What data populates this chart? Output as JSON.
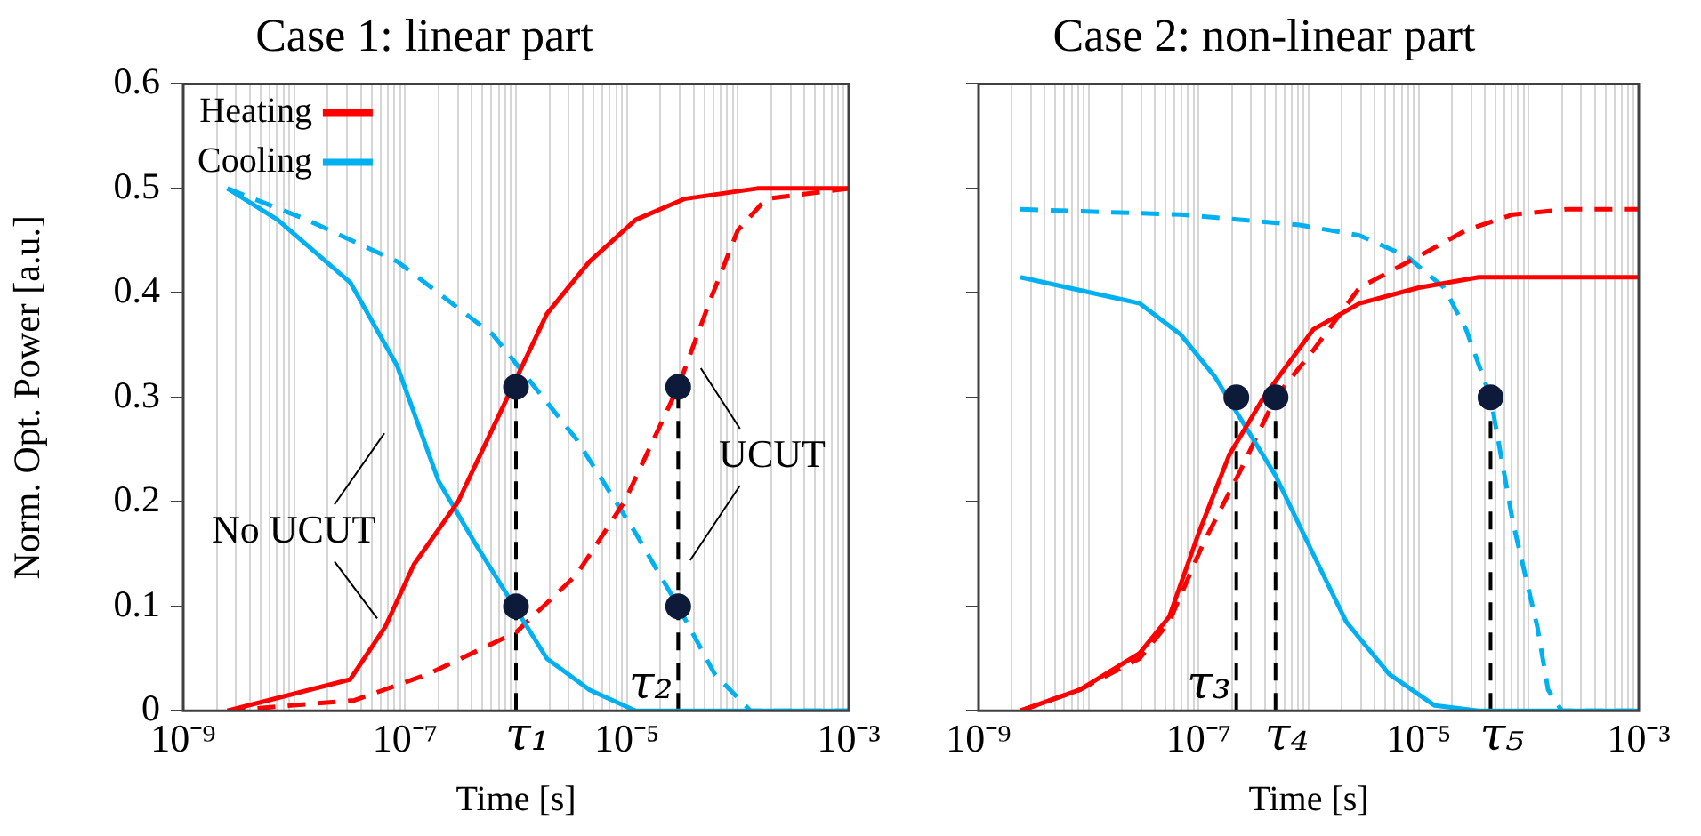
{
  "chart_data": [
    {
      "type": "line",
      "title": "Case 1: linear part",
      "xlabel": "Time [s]",
      "ylabel": "Norm. Opt. Power [a.u.]",
      "log": "x",
      "xlim": [
        1e-09,
        0.001
      ],
      "ylim": [
        0,
        0.6
      ],
      "yticks": [
        0,
        0.1,
        0.2,
        0.3,
        0.4,
        0.5,
        0.6
      ],
      "grid": "x",
      "legend": "top left",
      "xticks": [
        {
          "value": 1e-09,
          "label": "10⁻⁹"
        },
        {
          "value": 2e-09,
          "label": null
        },
        {
          "value": 3e-09,
          "label": null
        },
        {
          "value": 4e-09,
          "label": null
        },
        {
          "value": 5e-09,
          "label": null
        },
        {
          "value": 6e-09,
          "label": null
        },
        {
          "value": 7e-09,
          "label": null
        },
        {
          "value": 8e-09,
          "label": null
        },
        {
          "value": 9e-09,
          "label": null
        },
        {
          "value": 1e-08,
          "label": null
        },
        {
          "value": 2e-08,
          "label": null
        },
        {
          "value": 3e-08,
          "label": null
        },
        {
          "value": 4e-08,
          "label": null
        },
        {
          "value": 5e-08,
          "label": null
        },
        {
          "value": 6e-08,
          "label": null
        },
        {
          "value": 7e-08,
          "label": null
        },
        {
          "value": 8e-08,
          "label": null
        },
        {
          "value": 9e-08,
          "label": null
        },
        {
          "value": 1e-07,
          "label": "10⁻⁷"
        },
        {
          "value": 2e-07,
          "label": null
        },
        {
          "value": 3e-07,
          "label": null
        },
        {
          "value": 4e-07,
          "label": null
        },
        {
          "value": 5e-07,
          "label": null
        },
        {
          "value": 6e-07,
          "label": null
        },
        {
          "value": 7e-07,
          "label": null
        },
        {
          "value": 8e-07,
          "label": null
        },
        {
          "value": 9e-07,
          "label": null
        },
        {
          "value": 1e-06,
          "label": null
        },
        {
          "value": 2e-06,
          "label": null
        },
        {
          "value": 3e-06,
          "label": null
        },
        {
          "value": 4e-06,
          "label": null
        },
        {
          "value": 5e-06,
          "label": null
        },
        {
          "value": 6e-06,
          "label": null
        },
        {
          "value": 7e-06,
          "label": null
        },
        {
          "value": 8e-06,
          "label": null
        },
        {
          "value": 9e-06,
          "label": null
        },
        {
          "value": 1e-05,
          "label": "10⁻⁵"
        },
        {
          "value": 2e-05,
          "label": null
        },
        {
          "value": 3e-05,
          "label": null
        },
        {
          "value": 4e-05,
          "label": null
        },
        {
          "value": 5e-05,
          "label": null
        },
        {
          "value": 6e-05,
          "label": null
        },
        {
          "value": 7e-05,
          "label": null
        },
        {
          "value": 8e-05,
          "label": null
        },
        {
          "value": 9e-05,
          "label": null
        },
        {
          "value": 0.0001,
          "label": null
        },
        {
          "value": 0.0002,
          "label": null
        },
        {
          "value": 0.0003,
          "label": null
        },
        {
          "value": 0.0004,
          "label": null
        },
        {
          "value": 0.0005,
          "label": null
        },
        {
          "value": 0.0006,
          "label": null
        },
        {
          "value": 0.0007,
          "label": null
        },
        {
          "value": 0.0008,
          "label": null
        },
        {
          "value": 0.0009,
          "label": null
        },
        {
          "value": 0.001,
          "label": "10⁻³"
        }
      ],
      "series": [
        {
          "name": "Heating",
          "color": "#ff0000",
          "line_style": "solid",
          "marker": "none",
          "x": [
            2.5e-09,
            3.2e-08,
            6.6e-08,
            1.2e-07,
            3e-07,
            1.9e-06,
            4.6e-06,
            1.2e-05,
            3.3e-05,
            0.00015,
            0.001
          ],
          "values": [
            0,
            0.03,
            0.08,
            0.14,
            0.2,
            0.38,
            0.43,
            0.47,
            0.49,
            0.5,
            0.5
          ]
        },
        {
          "name": "Cooling",
          "color": "#00b0f0",
          "line_style": "solid",
          "marker": "none",
          "x": [
            2.5e-09,
            7.1e-09,
            3.2e-08,
            8.5e-08,
            2e-07,
            4.3e-07,
            1.9e-06,
            4.6e-06,
            1.2e-05,
            0.001
          ],
          "values": [
            0.5,
            0.47,
            0.41,
            0.33,
            0.22,
            0.16,
            0.05,
            0.02,
            0,
            0
          ]
        },
        {
          "color": "#ff0000",
          "line_style": "dashed",
          "marker": "none",
          "x": [
            2.5e-09,
            3.5e-08,
            1.6e-07,
            1e-06,
            3.5e-06,
            9.5e-06,
            2.9e-05,
            5.5e-05,
            0.0001,
            0.00018,
            0.001
          ],
          "values": [
            0,
            0.01,
            0.035,
            0.075,
            0.13,
            0.2,
            0.31,
            0.39,
            0.46,
            0.49,
            0.5
          ]
        },
        {
          "color": "#00b0f0",
          "line_style": "dashed",
          "marker": "none",
          "x": [
            2.5e-09,
            1.3e-08,
            8.5e-08,
            6.2e-07,
            3.5e-06,
            1.2e-05,
            2.9e-05,
            6.2e-05,
            0.00013,
            0.001
          ],
          "values": [
            0.5,
            0.47,
            0.43,
            0.36,
            0.26,
            0.17,
            0.1,
            0.035,
            0,
            0
          ]
        },
        {
          "type": "scatter",
          "color": "#0d1a3a",
          "marker": "circle",
          "x": [
            1e-06,
            1e-06,
            2.9e-05,
            2.9e-05
          ],
          "values": [
            0.31,
            0.1,
            0.31,
            0.1
          ]
        }
      ],
      "ref_lines": [
        {
          "axis": "x",
          "value": 1e-06,
          "label": "τ₁",
          "color": "#000000",
          "line_style": "dashed"
        },
        {
          "axis": "x",
          "value": 2.9e-05,
          "label": "τ₂",
          "color": "#000000",
          "line_style": "dashed"
        }
      ],
      "annotations": [
        "No UCUT",
        "UCUT"
      ]
    },
    {
      "type": "line",
      "title": "Case 2: non-linear part",
      "xlabel": "Time [s]",
      "log": "x",
      "xlim": [
        1e-09,
        0.001
      ],
      "ylim": [
        0,
        0.6
      ],
      "yticks": [
        0,
        0.1,
        0.2,
        0.3,
        0.4,
        0.5,
        0.6
      ],
      "grid": "x",
      "tick_labels": "x",
      "xticks": [
        {
          "value": 1e-09,
          "label": "10⁻⁹"
        },
        {
          "value": 2e-09,
          "label": null
        },
        {
          "value": 3e-09,
          "label": null
        },
        {
          "value": 4e-09,
          "label": null
        },
        {
          "value": 5e-09,
          "label": null
        },
        {
          "value": 6e-09,
          "label": null
        },
        {
          "value": 7e-09,
          "label": null
        },
        {
          "value": 8e-09,
          "label": null
        },
        {
          "value": 9e-09,
          "label": null
        },
        {
          "value": 1e-08,
          "label": null
        },
        {
          "value": 2e-08,
          "label": null
        },
        {
          "value": 3e-08,
          "label": null
        },
        {
          "value": 4e-08,
          "label": null
        },
        {
          "value": 5e-08,
          "label": null
        },
        {
          "value": 6e-08,
          "label": null
        },
        {
          "value": 7e-08,
          "label": null
        },
        {
          "value": 8e-08,
          "label": null
        },
        {
          "value": 9e-08,
          "label": null
        },
        {
          "value": 1e-07,
          "label": "10⁻⁷"
        },
        {
          "value": 2e-07,
          "label": null
        },
        {
          "value": 3e-07,
          "label": null
        },
        {
          "value": 4e-07,
          "label": null
        },
        {
          "value": 5e-07,
          "label": null
        },
        {
          "value": 6e-07,
          "label": null
        },
        {
          "value": 7e-07,
          "label": null
        },
        {
          "value": 8e-07,
          "label": null
        },
        {
          "value": 9e-07,
          "label": null
        },
        {
          "value": 1e-06,
          "label": null
        },
        {
          "value": 2e-06,
          "label": null
        },
        {
          "value": 3e-06,
          "label": null
        },
        {
          "value": 4e-06,
          "label": null
        },
        {
          "value": 5e-06,
          "label": null
        },
        {
          "value": 6e-06,
          "label": null
        },
        {
          "value": 7e-06,
          "label": null
        },
        {
          "value": 8e-06,
          "label": null
        },
        {
          "value": 9e-06,
          "label": null
        },
        {
          "value": 1e-05,
          "label": "10⁻⁵"
        },
        {
          "value": 2e-05,
          "label": null
        },
        {
          "value": 3e-05,
          "label": null
        },
        {
          "value": 4e-05,
          "label": null
        },
        {
          "value": 5e-05,
          "label": null
        },
        {
          "value": 6e-05,
          "label": null
        },
        {
          "value": 7e-05,
          "label": null
        },
        {
          "value": 8e-05,
          "label": null
        },
        {
          "value": 9e-05,
          "label": null
        },
        {
          "value": 0.0001,
          "label": null
        },
        {
          "value": 0.0002,
          "label": null
        },
        {
          "value": 0.0003,
          "label": null
        },
        {
          "value": 0.0004,
          "label": null
        },
        {
          "value": 0.0005,
          "label": null
        },
        {
          "value": 0.0006,
          "label": null
        },
        {
          "value": 0.0007,
          "label": null
        },
        {
          "value": 0.0008,
          "label": null
        },
        {
          "value": 0.0009,
          "label": null
        },
        {
          "value": 0.001,
          "label": "10⁻³"
        }
      ],
      "series": [
        {
          "color": "#ff0000",
          "line_style": "solid",
          "marker": "none",
          "x": [
            2.4e-09,
            8.3e-09,
            2.9e-08,
            5.4e-08,
            1e-07,
            1.9e-07,
            3.9e-07,
            1.1e-06,
            2.9e-06,
            1e-05,
            3.5e-05,
            0.001
          ],
          "values": [
            0,
            0.02,
            0.055,
            0.09,
            0.17,
            0.245,
            0.3,
            0.365,
            0.39,
            0.405,
            0.415,
            0.415
          ]
        },
        {
          "color": "#00b0f0",
          "line_style": "solid",
          "marker": "none",
          "x": [
            2.4e-09,
            2.9e-08,
            6.9e-08,
            1.4e-07,
            5e-07,
            1.1e-06,
            2.2e-06,
            5.4e-06,
            1.4e-05,
            3.5e-05,
            0.001
          ],
          "values": [
            0.415,
            0.39,
            0.36,
            0.32,
            0.225,
            0.15,
            0.085,
            0.035,
            0.005,
            0,
            0
          ]
        },
        {
          "color": "#ff0000",
          "line_style": "dashed",
          "marker": "none",
          "x": [
            2.4e-09,
            8.3e-09,
            2.9e-08,
            5.4e-08,
            1.1e-07,
            2.4e-07,
            5e-07,
            1.1e-06,
            2.9e-06,
            1e-05,
            2.7e-05,
            7.2e-05,
            0.00022,
            0.001
          ],
          "values": [
            0,
            0.02,
            0.05,
            0.085,
            0.16,
            0.23,
            0.3,
            0.345,
            0.405,
            0.435,
            0.46,
            0.475,
            0.48,
            0.48
          ]
        },
        {
          "color": "#00b0f0",
          "line_style": "dashed",
          "marker": "none",
          "x": [
            2.4e-09,
            6.9e-08,
            8.3e-07,
            2.9e-06,
            7.8e-06,
            1.7e-05,
            2.7e-05,
            4.5e-05,
            7.2e-05,
            0.00012,
            0.00015,
            0.0002,
            0.001
          ],
          "values": [
            0.48,
            0.475,
            0.465,
            0.455,
            0.435,
            0.405,
            0.365,
            0.3,
            0.18,
            0.08,
            0.02,
            0,
            0
          ]
        },
        {
          "type": "scatter",
          "color": "#0d1a3a",
          "marker": "circle",
          "x": [
            2.2e-07,
            5e-07,
            4.5e-05
          ],
          "values": [
            0.3,
            0.3,
            0.3
          ]
        }
      ],
      "ref_lines": [
        {
          "axis": "x",
          "value": 2.2e-07,
          "label": "τ₃",
          "color": "#000000",
          "line_style": "dashed"
        },
        {
          "axis": "x",
          "value": 5e-07,
          "label": "τ₄",
          "color": "#000000",
          "line_style": "dashed"
        },
        {
          "axis": "x",
          "value": 4.5e-05,
          "label": "τ₅",
          "color": "#000000",
          "line_style": "dashed"
        }
      ]
    }
  ]
}
